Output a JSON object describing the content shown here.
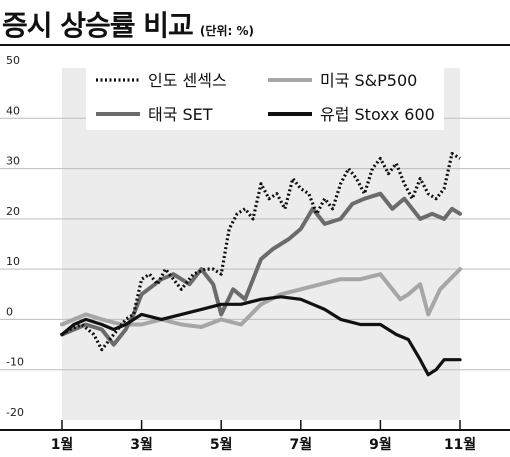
{
  "title": "증시 상승률 비교",
  "unit": "(단위: %)",
  "chart_data": {
    "type": "line",
    "ylim": [
      -20,
      50
    ],
    "yticks": [
      50,
      40,
      30,
      20,
      10,
      0,
      -10,
      -20
    ],
    "ytick_labels": [
      "50",
      "40",
      "30",
      "20",
      "10",
      "0",
      "-10",
      "-20"
    ],
    "xlim": [
      1,
      11
    ],
    "xticks": [
      1,
      3,
      5,
      7,
      9,
      11
    ],
    "xtick_labels": [
      "1월",
      "3월",
      "5월",
      "7월",
      "9월",
      "11월"
    ],
    "grid": "horizontal",
    "legend": "top",
    "series": [
      {
        "name": "인도 센섹스",
        "style": "dotted",
        "color": "#111111",
        "x": [
          1.0,
          1.2,
          1.5,
          1.8,
          2.0,
          2.3,
          2.6,
          2.8,
          3.0,
          3.2,
          3.4,
          3.6,
          3.8,
          4.0,
          4.3,
          4.6,
          4.8,
          5.0,
          5.2,
          5.4,
          5.6,
          5.8,
          6.0,
          6.2,
          6.4,
          6.6,
          6.8,
          7.0,
          7.2,
          7.4,
          7.6,
          7.8,
          8.0,
          8.2,
          8.4,
          8.6,
          8.8,
          9.0,
          9.2,
          9.4,
          9.6,
          9.8,
          10.0,
          10.2,
          10.4,
          10.6,
          10.8,
          11.0
        ],
        "y": [
          -3.0,
          -2.0,
          -1.0,
          -3.0,
          -6.0,
          -3.0,
          0.0,
          1.0,
          8.0,
          9.0,
          7.0,
          10.0,
          8.0,
          6.0,
          9.0,
          10.0,
          10.0,
          9.0,
          18.0,
          21.0,
          22.0,
          20.0,
          27.0,
          24.0,
          25.0,
          22.0,
          28.0,
          26.0,
          25.0,
          21.0,
          24.0,
          22.0,
          27.0,
          30.0,
          28.0,
          25.0,
          30.0,
          32.0,
          29.0,
          31.0,
          27.0,
          24.0,
          28.0,
          25.0,
          24.0,
          26.0,
          33.0,
          32.0
        ]
      },
      {
        "name": "미국 S&P500",
        "style": "solid",
        "color": "#a6a6a6",
        "x": [
          1.0,
          1.3,
          1.6,
          2.0,
          2.5,
          3.0,
          3.5,
          4.0,
          4.5,
          5.0,
          5.5,
          6.0,
          6.5,
          7.0,
          7.5,
          8.0,
          8.5,
          9.0,
          9.3,
          9.5,
          9.7,
          10.0,
          10.2,
          10.5,
          11.0
        ],
        "y": [
          -1.0,
          0.0,
          1.0,
          0.0,
          -1.0,
          -1.0,
          0.0,
          -1.0,
          -1.5,
          0.0,
          -1.0,
          3.0,
          5.0,
          6.0,
          7.0,
          8.0,
          8.0,
          9.0,
          6.0,
          4.0,
          5.0,
          7.0,
          1.0,
          6.0,
          10.0
        ]
      },
      {
        "name": "태국 SET",
        "style": "solid",
        "color": "#6b6b6b",
        "x": [
          1.0,
          1.3,
          1.6,
          2.0,
          2.3,
          2.6,
          2.8,
          3.0,
          3.5,
          3.8,
          4.2,
          4.5,
          4.8,
          5.0,
          5.3,
          5.6,
          6.0,
          6.3,
          6.7,
          7.0,
          7.3,
          7.6,
          8.0,
          8.3,
          8.6,
          9.0,
          9.3,
          9.6,
          10.0,
          10.3,
          10.6,
          10.8,
          11.0
        ],
        "y": [
          -3.0,
          -2.0,
          -1.0,
          -2.0,
          -5.0,
          -2.0,
          1.0,
          5.0,
          8.0,
          9.0,
          7.0,
          10.0,
          7.0,
          1.0,
          6.0,
          4.0,
          12.0,
          14.0,
          16.0,
          18.0,
          22.0,
          19.0,
          20.0,
          23.0,
          24.0,
          25.0,
          22.0,
          24.0,
          20.0,
          21.0,
          20.0,
          22.0,
          21.0
        ]
      },
      {
        "name": "유럽 Stoxx 600",
        "style": "solid",
        "color": "#111111",
        "x": [
          1.0,
          1.3,
          1.6,
          2.0,
          2.3,
          2.6,
          3.0,
          3.5,
          4.0,
          4.5,
          5.0,
          5.5,
          6.0,
          6.5,
          7.0,
          7.3,
          7.6,
          8.0,
          8.5,
          9.0,
          9.4,
          9.7,
          10.0,
          10.2,
          10.4,
          10.6,
          10.8,
          11.0
        ],
        "y": [
          -3.0,
          -1.0,
          0.0,
          -1.0,
          -2.0,
          -1.0,
          1.0,
          0.0,
          1.0,
          2.0,
          3.0,
          3.0,
          4.0,
          4.5,
          4.0,
          3.0,
          2.0,
          0.0,
          -1.0,
          -1.0,
          -3.0,
          -4.0,
          -8.0,
          -11.0,
          -10.0,
          -8.0,
          -8.0,
          -8.0
        ]
      }
    ]
  }
}
